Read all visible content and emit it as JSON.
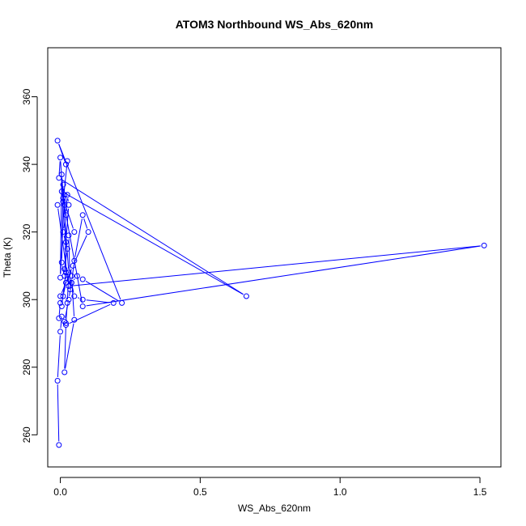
{
  "chart_data": {
    "type": "scatter",
    "mode": "lines+markers",
    "title": "ATOM3 Northbound WS_Abs_620nm",
    "xlabel": "WS_Abs_620nm",
    "ylabel": "Theta (K)",
    "xlim": [
      -0.045,
      1.575
    ],
    "ylim": [
      250.5,
      374.5
    ],
    "xticks": [
      0.0,
      0.5,
      1.0,
      1.5
    ],
    "xtick_labels": [
      "0.0",
      "0.5",
      "1.0",
      "1.5"
    ],
    "yticks": [
      260,
      280,
      300,
      320,
      340,
      360
    ],
    "ytick_labels": [
      "260",
      "280",
      "300",
      "320",
      "340",
      "360"
    ],
    "grid": false,
    "legend": "none",
    "color": "#0000ff",
    "marker": "open-circle",
    "series": [
      {
        "x": [
          -0.005,
          -0.01,
          0.0,
          0.005,
          -0.005,
          0.0,
          0.01,
          0.02,
          0.015,
          0.025,
          0.01,
          0.02,
          0.025,
          0.03,
          0.02,
          0.015,
          0.005,
          0.01,
          0.015,
          0.0,
          0.005,
          0.03,
          0.025,
          0.02,
          0.015,
          0.05,
          0.04,
          0.035,
          0.03,
          0.05,
          0.01,
          0.015,
          0.02,
          0.005,
          0.0,
          0.045,
          0.1,
          0.08,
          0.05,
          0.04,
          0.03,
          0.015,
          0.02,
          0.19,
          0.08,
          0.05,
          0.04,
          0.06,
          0.08,
          0.22,
          -0.01,
          0.02,
          0.025,
          0.01,
          0.0,
          -0.005,
          0.665,
          0.005,
          0.08,
          1.515,
          0.03,
          -0.01
        ],
        "y": [
          257,
          276,
          290.5,
          295,
          294.5,
          299,
          301,
          305,
          309,
          315,
          320,
          325,
          331,
          328,
          317,
          307,
          311,
          334,
          331,
          306.5,
          337,
          308,
          299,
          293,
          278.5,
          294,
          307,
          303,
          319,
          320,
          330,
          328,
          308,
          298,
          301,
          310,
          320,
          325,
          311.5,
          305,
          300,
          293.5,
          292.5,
          299,
          300,
          301,
          305,
          307,
          306,
          299,
          347,
          340,
          341,
          329,
          342,
          336,
          301,
          332,
          298,
          316,
          304,
          328
        ]
      }
    ]
  }
}
